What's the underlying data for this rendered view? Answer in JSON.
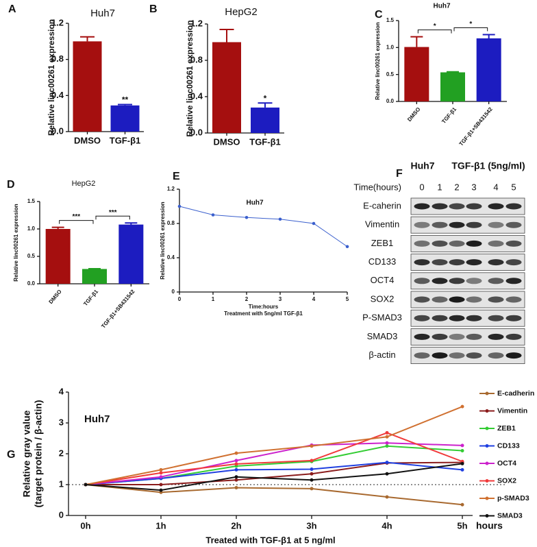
{
  "chart_data": [
    {
      "type": "bar",
      "panel_label": "A",
      "title": "Huh7",
      "ylabel": "Relative linc00261 expression",
      "categories": [
        "DMSO",
        "TGF-β1"
      ],
      "values": [
        1.0,
        0.29
      ],
      "errors": [
        0.05,
        0.01
      ],
      "colors": [
        "#a50f0f",
        "#1c1cc0"
      ],
      "ylim": [
        0,
        1.2
      ],
      "yticks": [
        {
          "value": 0,
          "label": "0.0"
        },
        0.4,
        0.8,
        1.2
      ],
      "annotations": [
        "**"
      ]
    },
    {
      "type": "bar",
      "panel_label": "B",
      "title": "HepG2",
      "ylabel": "Relative linc00261 expression",
      "categories": [
        "DMSO",
        "TGF-β1"
      ],
      "values": [
        1.0,
        0.28
      ],
      "errors": [
        0.14,
        0.05
      ],
      "colors": [
        "#a50f0f",
        "#1c1cc0"
      ],
      "ylim": [
        0,
        1.2
      ],
      "yticks": [
        {
          "value": 0,
          "label": "0.0"
        },
        0.4,
        0.8,
        1.2
      ],
      "annotations": [
        "*"
      ]
    },
    {
      "type": "bar",
      "panel_label": "C",
      "title": "Huh7",
      "ylabel": "Relative linc00261 expression",
      "categories": [
        "DMSO",
        "TGF-β1",
        "TGF-β1+SB431542"
      ],
      "values": [
        1.01,
        0.54,
        1.17
      ],
      "errors": [
        0.19,
        0.01,
        0.07
      ],
      "colors": [
        "#a50f0f",
        "#22a022",
        "#1c1cc0"
      ],
      "ylim": [
        0,
        1.5
      ],
      "yticks": [
        {
          "value": 0,
          "label": "0.0"
        },
        0.5,
        {
          "value": 1,
          "label": "1.0"
        },
        1.5
      ],
      "annotations": [
        "*",
        "*"
      ]
    },
    {
      "type": "bar",
      "panel_label": "D",
      "title": "HepG2",
      "ylabel": "Relative linc00261 expression",
      "categories": [
        "DMSO",
        "TGF-β1",
        "TGF-β1+SB431542"
      ],
      "values": [
        1.0,
        0.27,
        1.08
      ],
      "errors": [
        0.03,
        0.005,
        0.03
      ],
      "colors": [
        "#a50f0f",
        "#22a022",
        "#1c1cc0"
      ],
      "ylim": [
        0,
        1.5
      ],
      "yticks": [
        {
          "value": 0,
          "label": "0.0"
        },
        0.5,
        {
          "value": 1,
          "label": "1.0"
        },
        1.5
      ],
      "annotations": [
        "***",
        "***"
      ]
    },
    {
      "type": "line",
      "panel_label": "E",
      "title": "Huh7",
      "ylabel": "Relative linc00261 expression",
      "xlabel": [
        "Time:hours",
        "Treatment with 5ng/ml TGF-β1"
      ],
      "x": [
        0,
        1,
        2,
        3,
        4,
        5
      ],
      "values": [
        1.0,
        0.9,
        0.87,
        0.85,
        0.8,
        0.53
      ],
      "color": "#3a5fcd",
      "xlim": [
        0,
        5
      ],
      "xticks": [
        0,
        1,
        2,
        3,
        4,
        5
      ],
      "ylim": [
        0,
        1.2
      ],
      "yticks": [
        0,
        0.4,
        0.8,
        1.2
      ]
    },
    {
      "type": "multiline",
      "panel_label": "G",
      "title": "Huh7",
      "ylabel": [
        "Relative gray value",
        "(target protein / β-actin)"
      ],
      "xlabel": "Treated with TGF-β1 at 5 ng/ml",
      "x_unit": "hours",
      "categories": [
        "0h",
        "1h",
        "2h",
        "3h",
        "4h",
        "5h"
      ],
      "ylim": [
        0,
        4
      ],
      "yticks": [
        0,
        1,
        2,
        3,
        4
      ],
      "hline": 1,
      "series": [
        {
          "name": "E-cadherin",
          "color": "#a8692f",
          "values": [
            1.0,
            0.75,
            0.9,
            0.87,
            0.6,
            0.35
          ]
        },
        {
          "name": "Vimentin",
          "color": "#8b1c1c",
          "values": [
            1.0,
            1.0,
            1.15,
            1.35,
            1.7,
            1.72
          ]
        },
        {
          "name": "ZEB1",
          "color": "#33cc33",
          "values": [
            1.0,
            1.2,
            1.6,
            1.75,
            2.25,
            2.1
          ]
        },
        {
          "name": "CD133",
          "color": "#1f3fe0",
          "values": [
            1.0,
            1.2,
            1.48,
            1.5,
            1.72,
            1.48
          ]
        },
        {
          "name": "OCT4",
          "color": "#cc22cc",
          "values": [
            1.0,
            1.25,
            1.78,
            2.28,
            2.35,
            2.27
          ]
        },
        {
          "name": "SOX2",
          "color": "#f03a3a",
          "values": [
            1.0,
            1.38,
            1.67,
            1.78,
            2.68,
            1.75
          ]
        },
        {
          "name": "p-SMAD3",
          "color": "#d07030",
          "values": [
            1.0,
            1.48,
            2.02,
            2.25,
            2.55,
            3.53
          ]
        },
        {
          "name": "SMAD3",
          "color": "#111111",
          "values": [
            1.0,
            0.82,
            1.25,
            1.15,
            1.35,
            1.68
          ]
        }
      ]
    }
  ],
  "blot": {
    "panel_label": "F",
    "header": [
      "Huh7",
      "TGF-β1 (5ng/ml)"
    ],
    "time_label": "Time(hours)",
    "lanes": [
      "0",
      "1",
      "2",
      "3",
      "4",
      "5"
    ],
    "rows": [
      "E-caherin",
      "Vimentin",
      "ZEB1",
      "CD133",
      "OCT4",
      "SOX2",
      "P-SMAD3",
      "SMAD3",
      "β-actin"
    ]
  }
}
